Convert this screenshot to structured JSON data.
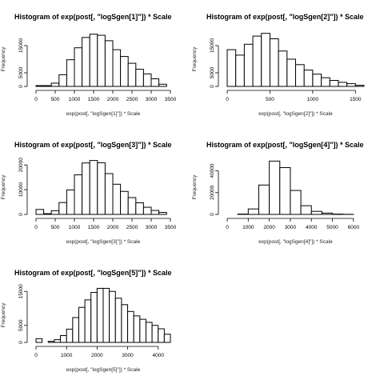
{
  "page": {
    "background": "#ffffff",
    "bar_fill": "#ffffff",
    "bar_stroke": "#000000"
  },
  "chart_data": [
    {
      "type": "bar",
      "title": "Histogram of exp(post[, \"logSgen[1]\"]) * Scale",
      "xlabel": "exp(post[, \"logSgen[1]\"]) * Scale",
      "ylabel": "Frequency",
      "xlim": [
        0,
        3500
      ],
      "ylim": [
        0,
        20000
      ],
      "x_ticks": [
        0,
        500,
        1000,
        1500,
        2000,
        2500,
        3000,
        3500
      ],
      "y_ticks": [
        0,
        5000,
        15000
      ],
      "bin_edges": [
        0,
        200,
        400,
        600,
        800,
        1000,
        1200,
        1400,
        1600,
        1800,
        2000,
        2200,
        2400,
        2600,
        2800,
        3000,
        3200,
        3400
      ],
      "values": [
        300,
        300,
        1200,
        4300,
        9800,
        14200,
        18000,
        19200,
        18800,
        16800,
        13500,
        11000,
        8500,
        6300,
        4600,
        2800,
        800
      ]
    },
    {
      "type": "bar",
      "title": "Histogram of exp(post[, \"logSgen[2]\"]) * Scale",
      "xlabel": "exp(post[, \"logSgen[2]\"]) * Scale",
      "ylabel": "Frequency",
      "xlim": [
        0,
        1600
      ],
      "ylim": [
        0,
        20000
      ],
      "x_ticks": [
        0,
        500,
        1000,
        1500
      ],
      "y_ticks": [
        0,
        5000,
        15000
      ],
      "bin_edges": [
        0,
        100,
        200,
        300,
        400,
        500,
        600,
        700,
        800,
        900,
        1000,
        1100,
        1200,
        1300,
        1400,
        1500,
        1600
      ],
      "values": [
        13500,
        11500,
        15500,
        18500,
        19500,
        17500,
        13000,
        10000,
        8000,
        6000,
        4500,
        3200,
        2200,
        1500,
        1000,
        400
      ]
    },
    {
      "type": "bar",
      "title": "Histogram of exp(post[, \"logSgen[3]\"]) * Scale",
      "xlabel": "exp(post[, \"logSgen[3]\"]) * Scale",
      "ylabel": "Frequency",
      "xlim": [
        0,
        3500
      ],
      "ylim": [
        0,
        22000
      ],
      "x_ticks": [
        0,
        500,
        1000,
        1500,
        2000,
        2500,
        3000,
        3500
      ],
      "y_ticks": [
        0,
        10000,
        20000
      ],
      "bin_edges": [
        0,
        200,
        400,
        600,
        800,
        1000,
        1200,
        1400,
        1600,
        1800,
        2000,
        2200,
        2400,
        2600,
        2800,
        3000,
        3200,
        3400
      ],
      "values": [
        2000,
        300,
        1500,
        4800,
        9900,
        16000,
        20800,
        21800,
        20900,
        16500,
        12200,
        9300,
        6800,
        4700,
        2900,
        1600,
        800
      ]
    },
    {
      "type": "bar",
      "title": "Histogram of exp(post[, \"logSgen[4]\"]) * Scale",
      "xlabel": "exp(post[, \"logSgen[4]\"]) * Scale",
      "ylabel": "Frequency",
      "xlim": [
        0,
        6500
      ],
      "ylim": [
        0,
        50000
      ],
      "x_ticks": [
        0,
        1000,
        2000,
        3000,
        4000,
        5000,
        6000
      ],
      "y_ticks": [
        0,
        20000,
        40000
      ],
      "bin_edges": [
        0,
        500,
        1000,
        1500,
        2000,
        2500,
        3000,
        3500,
        4000,
        4500,
        5000,
        5500,
        6000,
        6500
      ],
      "values": [
        0,
        300,
        5000,
        27000,
        49000,
        43000,
        22000,
        8000,
        2800,
        1200,
        300,
        100,
        0
      ]
    },
    {
      "type": "bar",
      "title": "Histogram of exp(post[, \"logSgen[5]\"]) * Scale",
      "xlabel": "exp(post[, \"logSgen[5]\"]) * Scale",
      "ylabel": "Frequency",
      "xlim": [
        0,
        4400
      ],
      "ylim": [
        0,
        16000
      ],
      "x_ticks": [
        0,
        1000,
        2000,
        3000,
        4000
      ],
      "y_ticks": [
        0,
        5000,
        15000
      ],
      "bin_edges": [
        0,
        200,
        400,
        600,
        800,
        1000,
        1200,
        1400,
        1600,
        1800,
        2000,
        2200,
        2400,
        2600,
        2800,
        3000,
        3200,
        3400,
        3600,
        3800,
        4000,
        4200,
        4400
      ],
      "values": [
        1100,
        0,
        300,
        800,
        2000,
        3900,
        7300,
        10300,
        12500,
        14700,
        15900,
        15900,
        15000,
        13000,
        11100,
        9100,
        7800,
        6800,
        5900,
        5000,
        4000,
        2400
      ]
    }
  ]
}
